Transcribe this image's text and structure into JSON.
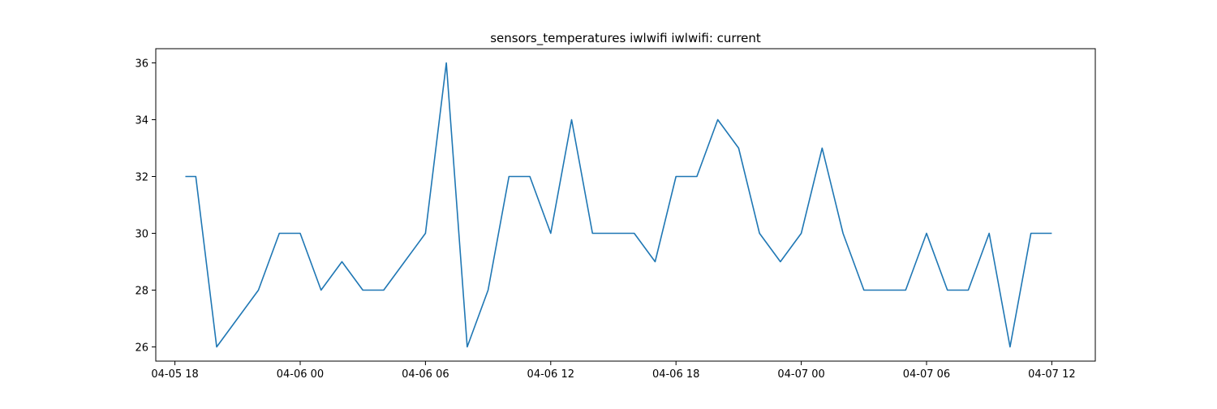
{
  "chart_data": {
    "type": "line",
    "title": "sensors_temperatures iwlwifi iwlwifi:  current",
    "xlabel": "",
    "ylabel": "",
    "x_tick_labels": [
      "04-05 18",
      "04-06 00",
      "04-06 06",
      "04-06 12",
      "04-06 18",
      "04-07 00",
      "04-07 06",
      "04-07 12"
    ],
    "y_ticks": [
      26,
      28,
      30,
      32,
      34,
      36
    ],
    "xlim": [
      "2024-04-05 17:05",
      "2024-04-07 14:05"
    ],
    "ylim": [
      25.5,
      36.5
    ],
    "grid": false,
    "legend": "none",
    "line_color": "#1f77b4",
    "series": [
      {
        "x": [
          "2024-04-05 18:30",
          "2024-04-05 19:00",
          "2024-04-05 20:00",
          "2024-04-05 21:00",
          "2024-04-05 22:00",
          "2024-04-05 23:00",
          "2024-04-06 00:00",
          "2024-04-06 01:00",
          "2024-04-06 02:00",
          "2024-04-06 03:00",
          "2024-04-06 04:00",
          "2024-04-06 05:00",
          "2024-04-06 06:00",
          "2024-04-06 07:00",
          "2024-04-06 08:00",
          "2024-04-06 09:00",
          "2024-04-06 10:00",
          "2024-04-06 11:00",
          "2024-04-06 12:00",
          "2024-04-06 13:00",
          "2024-04-06 14:00",
          "2024-04-06 15:00",
          "2024-04-06 16:00",
          "2024-04-06 17:00",
          "2024-04-06 18:00",
          "2024-04-06 19:00",
          "2024-04-06 20:00",
          "2024-04-06 21:00",
          "2024-04-06 22:00",
          "2024-04-06 23:00",
          "2024-04-07 00:00",
          "2024-04-07 01:00",
          "2024-04-07 02:00",
          "2024-04-07 03:00",
          "2024-04-07 04:00",
          "2024-04-07 05:00",
          "2024-04-07 06:00",
          "2024-04-07 07:00",
          "2024-04-07 08:00",
          "2024-04-07 09:00",
          "2024-04-07 10:00",
          "2024-04-07 11:00",
          "2024-04-07 12:00"
        ],
        "y": [
          32,
          32,
          26,
          27,
          28,
          30,
          30,
          28,
          29,
          28,
          28,
          29,
          30,
          36,
          26,
          28,
          32,
          32,
          30,
          34,
          30,
          30,
          30,
          29,
          32,
          32,
          34,
          33,
          30,
          29,
          30,
          33,
          30,
          28,
          28,
          28,
          30,
          28,
          28,
          30,
          26,
          30,
          30
        ]
      }
    ]
  }
}
